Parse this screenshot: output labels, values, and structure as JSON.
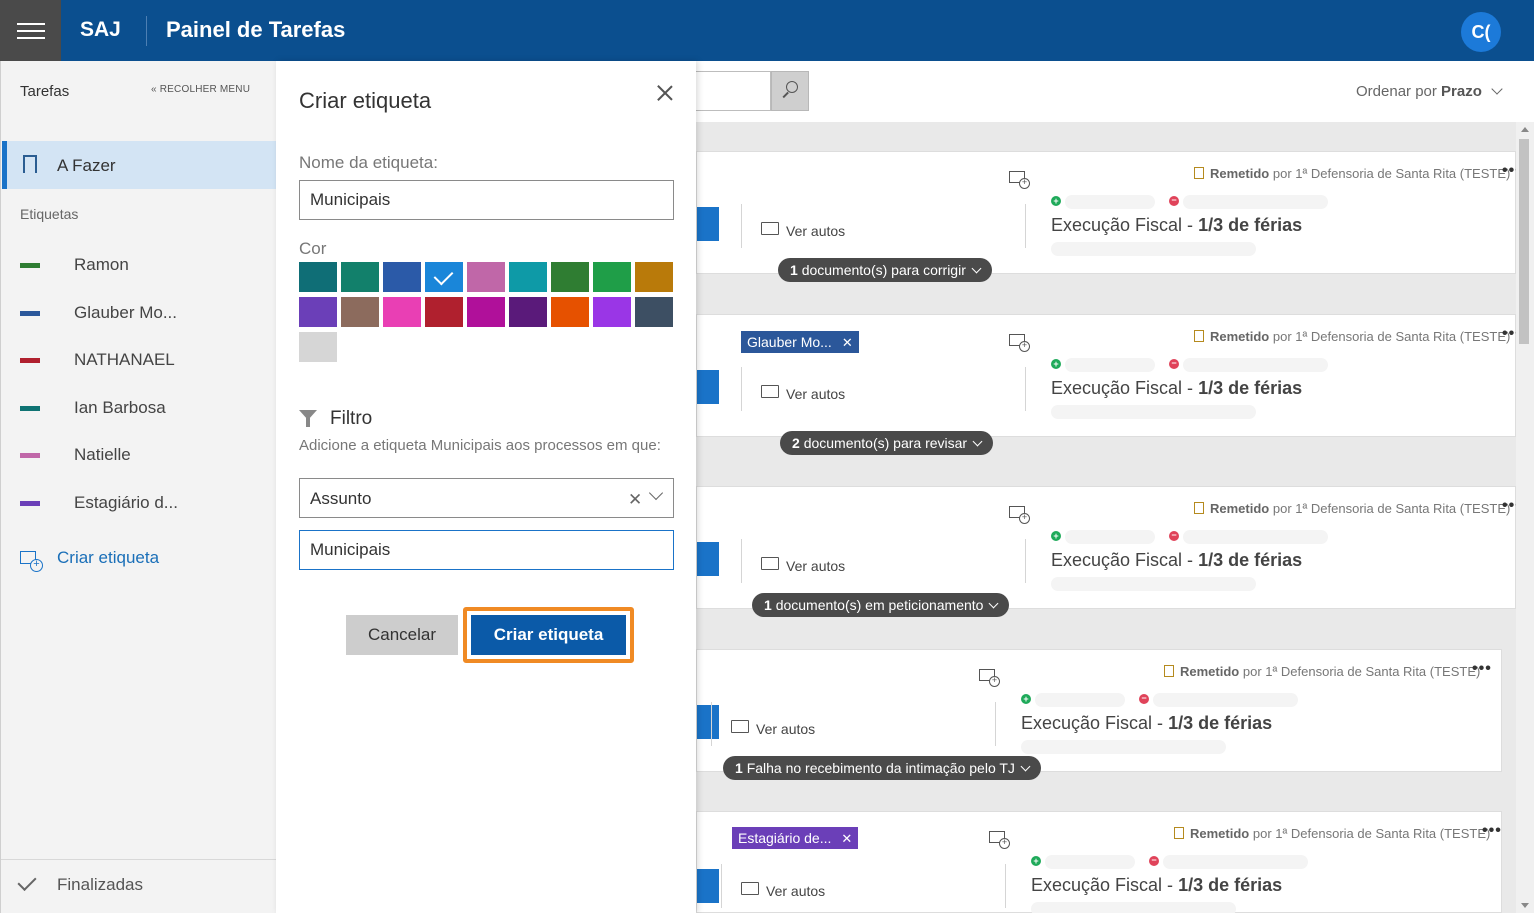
{
  "header": {
    "brand": "SAJ",
    "title": "Painel de Tarefas",
    "avatar_initials": "C("
  },
  "sidebar": {
    "title": "Tarefas",
    "collapse_label": "RECOLHER MENU",
    "todo_label": "A Fazer",
    "tags_heading": "Etiquetas",
    "tags": [
      {
        "name": "Ramon",
        "color": "#2e7d32"
      },
      {
        "name": "Glauber Mo...",
        "color": "#2b579a"
      },
      {
        "name": "NATHANAEL",
        "color": "#b0202e"
      },
      {
        "name": "Ian Barbosa",
        "color": "#0f7373"
      },
      {
        "name": "Natielle",
        "color": "#c067a8"
      },
      {
        "name": "Estagiário d...",
        "color": "#6b3fb8"
      }
    ],
    "create_tag_label": "Criar etiqueta",
    "finished_label": "Finalizadas"
  },
  "dialog": {
    "title": "Criar etiqueta",
    "name_label": "Nome da etiqueta:",
    "name_value": "Municipais",
    "color_label": "Cor",
    "colors": [
      "#0f6e76",
      "#12806b",
      "#2b5aa8",
      "#1a86d9",
      "#c067a8",
      "#0e9aa7",
      "#2f7d32",
      "#1f9e48",
      "#b97a0a",
      "#6b3fb8",
      "#8c6b5d",
      "#e93fb4",
      "#b0202e",
      "#b0109a",
      "#5a1a7a",
      "#e65100",
      "#9a36e6",
      "#3d4f63",
      "#d6d6d6"
    ],
    "selected_color_index": 3,
    "filter_heading": "Filtro",
    "filter_description": "Adicione a etiqueta Municipais aos processos em que:",
    "filter_field": "Assunto",
    "filter_value": "Municipais",
    "cancel_label": "Cancelar",
    "create_label": "Criar etiqueta"
  },
  "main": {
    "sort_prefix": "Ordenar por",
    "sort_value": "Prazo",
    "ver_autos": "Ver autos",
    "cards": [
      {
        "remetido": "Remetido",
        "por": "por 1ª Defensoria de Santa Rita (TESTE)",
        "proc_a": "Execução Fiscal - ",
        "proc_b": "1/3 de férias",
        "pill_count": "1",
        "pill_text": "documento(s) para corrigir",
        "tag": ""
      },
      {
        "remetido": "Remetido",
        "por": "por 1ª Defensoria de Santa Rita (TESTE)",
        "proc_a": "Execução Fiscal - ",
        "proc_b": "1/3 de férias",
        "pill_count": "2",
        "pill_text": "documento(s) para revisar",
        "tag": "Glauber Mo..."
      },
      {
        "remetido": "Remetido",
        "por": "por 1ª Defensoria de Santa Rita (TESTE)",
        "proc_a": "Execução Fiscal - ",
        "proc_b": "1/3 de férias",
        "pill_count": "1",
        "pill_text": "documento(s) em peticionamento",
        "tag": ""
      },
      {
        "remetido": "Remetido",
        "por": "por 1ª Defensoria de Santa Rita (TESTE)",
        "proc_a": "Execução Fiscal - ",
        "proc_b": "1/3 de férias",
        "pill_count": "1",
        "pill_text": "Falha no recebimento da intimação pelo TJ",
        "tag": ""
      },
      {
        "remetido": "Remetido",
        "por": "por 1ª Defensoria de Santa Rita (TESTE)",
        "proc_a": "Execução Fiscal - ",
        "proc_b": "1/3 de férias",
        "pill_count": "",
        "pill_text": "",
        "tag": "Estagiário de..."
      }
    ]
  }
}
